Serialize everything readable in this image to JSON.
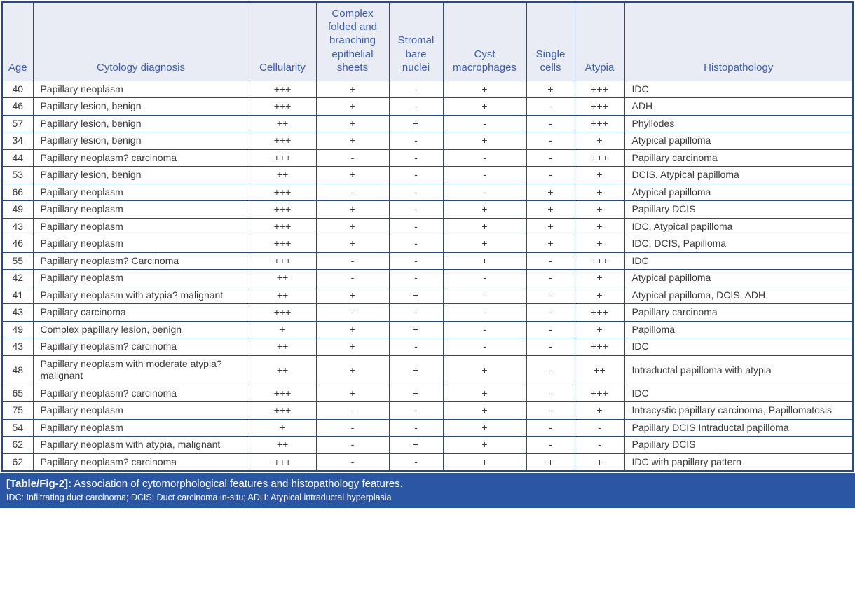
{
  "table": {
    "columns": [
      "Age",
      "Cytology diagnosis",
      "Cellularity",
      "Complex folded and branching epithelial sheets",
      "Stromal bare nuclei",
      "Cyst macrophages",
      "Single cells",
      "Atypia",
      "Histopathology"
    ],
    "rows": [
      [
        "40",
        "Papillary neoplasm",
        "+++",
        "+",
        "-",
        "+",
        "+",
        "+++",
        "IDC"
      ],
      [
        "46",
        "Papillary lesion, benign",
        "+++",
        "+",
        "-",
        "+",
        "-",
        "+++",
        "ADH"
      ],
      [
        "57",
        "Papillary lesion, benign",
        "++",
        "+",
        "+",
        "-",
        "-",
        "+++",
        "Phyllodes"
      ],
      [
        "34",
        "Papillary lesion, benign",
        "+++",
        "+",
        "-",
        "+",
        "-",
        "+",
        "Atypical papilloma"
      ],
      [
        "44",
        "Papillary neoplasm? carcinoma",
        "+++",
        "-",
        "-",
        "-",
        "-",
        "+++",
        "Papillary carcinoma"
      ],
      [
        "53",
        "Papillary lesion, benign",
        "++",
        "+",
        "-",
        "-",
        "-",
        "+",
        "DCIS, Atypical papilloma"
      ],
      [
        "66",
        "Papillary neoplasm",
        "+++",
        "-",
        "-",
        "-",
        "+",
        "+",
        "Atypical papilloma"
      ],
      [
        "49",
        "Papillary neoplasm",
        "+++",
        "+",
        "-",
        "+",
        "+",
        "+",
        "Papillary DCIS"
      ],
      [
        "43",
        "Papillary neoplasm",
        "+++",
        "+",
        "-",
        "+",
        "+",
        "+",
        "IDC, Atypical papilloma"
      ],
      [
        "46",
        "Papillary neoplasm",
        "+++",
        "+",
        "-",
        "+",
        "+",
        "+",
        "IDC, DCIS, Papilloma"
      ],
      [
        "55",
        "Papillary neoplasm? Carcinoma",
        "+++",
        "-",
        "-",
        "+",
        "-",
        "+++",
        "IDC"
      ],
      [
        "42",
        "Papillary neoplasm",
        "++",
        "-",
        "-",
        "-",
        "-",
        "+",
        "Atypical papilloma"
      ],
      [
        "41",
        "Papillary neoplasm with atypia? malignant",
        "++",
        "+",
        "+",
        "-",
        "-",
        "+",
        "Atypical papilloma, DCIS, ADH"
      ],
      [
        "43",
        "Papillary carcinoma",
        "+++",
        "-",
        "-",
        "-",
        "-",
        "+++",
        "Papillary carcinoma"
      ],
      [
        "49",
        "Complex papillary lesion, benign",
        "+",
        "+",
        "+",
        "-",
        "-",
        "+",
        "Papilloma"
      ],
      [
        "43",
        "Papillary neoplasm? carcinoma",
        "++",
        "+",
        "-",
        "-",
        "-",
        "+++",
        "IDC"
      ],
      [
        "48",
        "Papillary neoplasm with moderate atypia? malignant",
        "++",
        "+",
        "+",
        "+",
        "-",
        "++",
        "Intraductal papilloma with atypia"
      ],
      [
        "65",
        "Papillary neoplasm? carcinoma",
        "+++",
        "+",
        "+",
        "+",
        "-",
        "+++",
        "IDC"
      ],
      [
        "75",
        "Papillary neoplasm",
        "+++",
        "-",
        "-",
        "+",
        "-",
        "+",
        "Intracystic papillary carcinoma, Papillomatosis"
      ],
      [
        "54",
        "Papillary neoplasm",
        "+",
        "-",
        "-",
        "+",
        "-",
        "-",
        "Papillary DCIS Intraductal papilloma"
      ],
      [
        "62",
        "Papillary neoplasm with atypia, malignant",
        "++",
        "-",
        "+",
        "+",
        "-",
        "-",
        "Papillary DCIS"
      ],
      [
        "62",
        "Papillary neoplasm? carcinoma",
        "+++",
        "-",
        "-",
        "+",
        "+",
        "+",
        "IDC with papillary pattern"
      ]
    ]
  },
  "caption": {
    "label": "[Table/Fig-2]:",
    "text": "Association of cytomorphological features and histopathology features.",
    "abbreviations": "IDC: Infiltrating duct carcinoma; DCIS: Duct carcinoma in-situ; ADH: Atypical intraductal hyperplasia"
  },
  "colors": {
    "border": "#2a4a80",
    "header_bg": "#e9ecf5",
    "header_text": "#3b5dab",
    "body_text": "#3a3a3a",
    "caption_bg": "#2a56a3",
    "caption_text": "#ffffff"
  }
}
